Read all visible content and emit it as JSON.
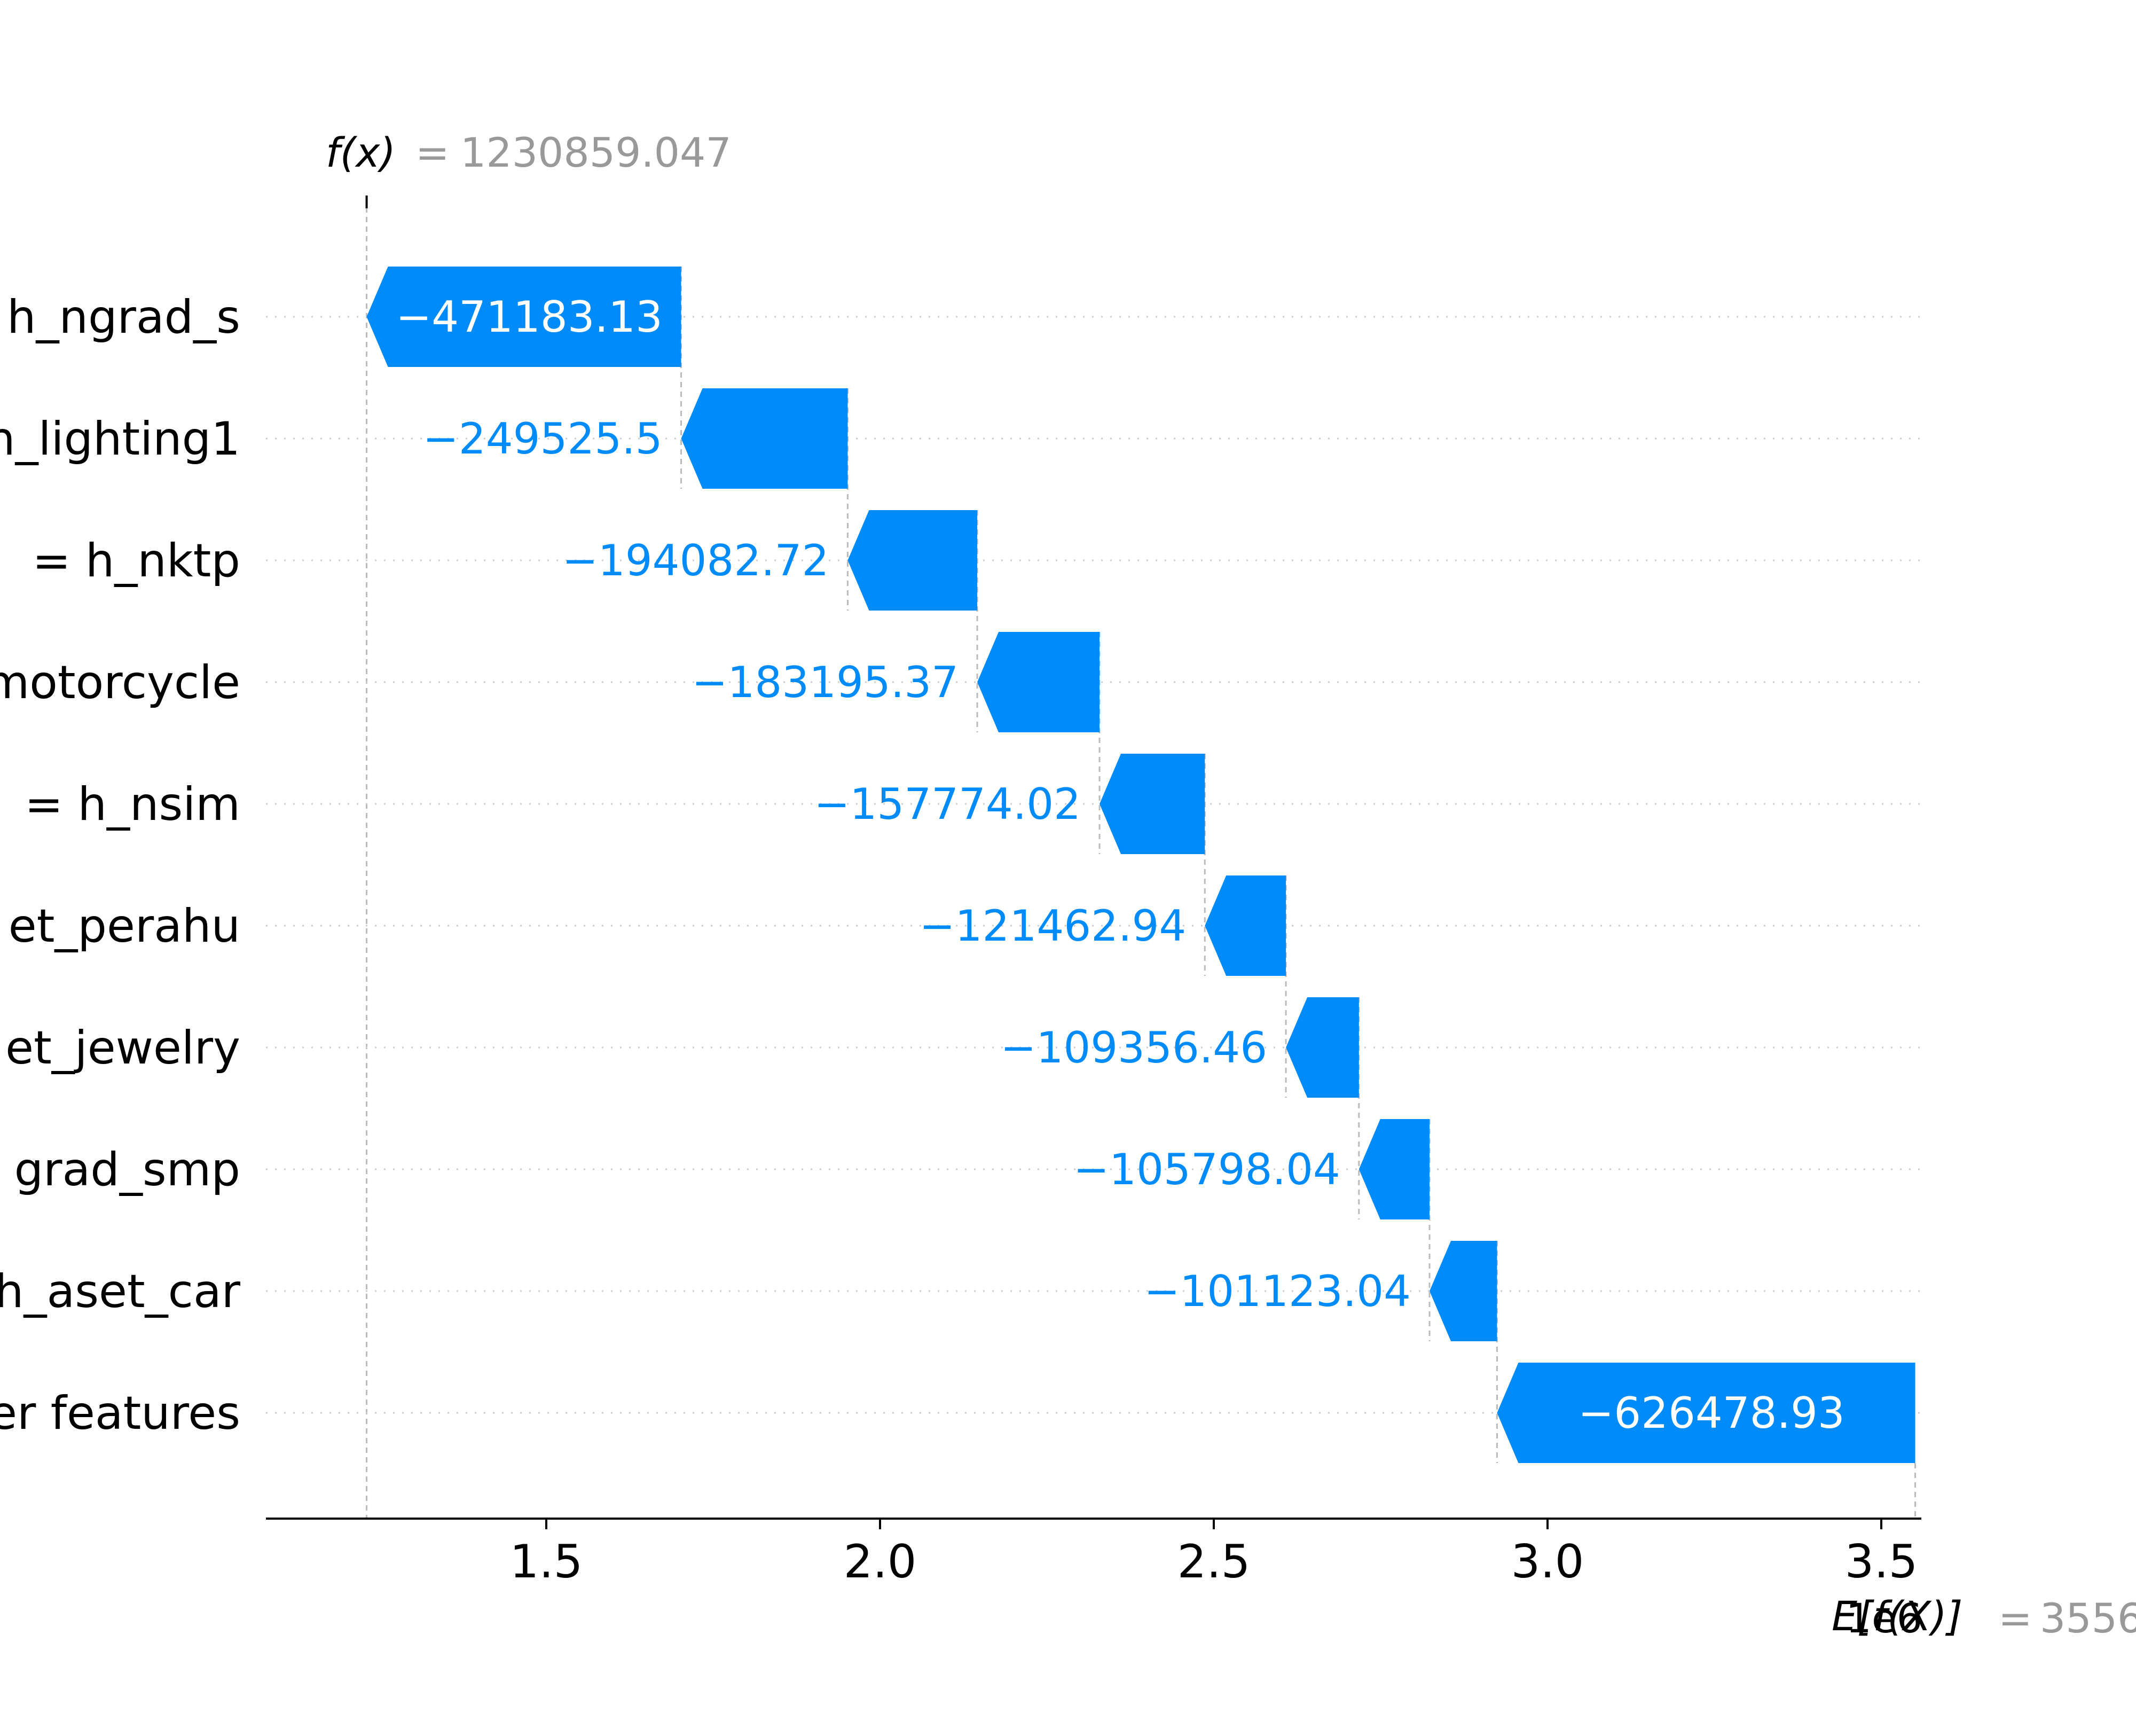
{
  "chart_data": {
    "type": "waterfall",
    "fx": {
      "name": "f(x)",
      "value": "1230859.047"
    },
    "efx": {
      "name": "E[f(X)]",
      "value": "3556..."
    },
    "scale_label": "1e6",
    "x_axis": {
      "ticks": [
        1.5,
        2.0,
        2.5,
        3.0,
        3.5
      ],
      "tick_labels": [
        "1.5",
        "2.0",
        "2.5",
        "3.0",
        "3.5"
      ],
      "range": [
        1.08,
        3.56
      ],
      "unit_multiplier": 1000000
    },
    "features": [
      {
        "label": "h_ngrad_s",
        "value": -471183.13,
        "value_label": "−471183.13",
        "start": 1.702042,
        "end": 1.230859
      },
      {
        "label": "h_lighting1",
        "value": -249525.5,
        "value_label": "−249525.5",
        "start": 1.951568,
        "end": 1.702042
      },
      {
        "label": "= h_nktp",
        "value": -194082.72,
        "value_label": "−194082.72",
        "start": 2.14565,
        "end": 1.951568
      },
      {
        "label": "motorcycle",
        "value": -183195.37,
        "value_label": "−183195.37",
        "start": 2.328846,
        "end": 2.14565
      },
      {
        "label": "= h_nsim",
        "value": -157774.02,
        "value_label": "−157774.02",
        "start": 2.48662,
        "end": 2.328846
      },
      {
        "label": "et_perahu",
        "value": -121462.94,
        "value_label": "−121462.94",
        "start": 2.608083,
        "end": 2.48662
      },
      {
        "label": "et_jewelry",
        "value": -109356.46,
        "value_label": "−109356.46",
        "start": 2.717439,
        "end": 2.608083
      },
      {
        "label": "grad_smp",
        "value": -105798.04,
        "value_label": "−105798.04",
        "start": 2.823237,
        "end": 2.717439
      },
      {
        "label": "h_aset_car",
        "value": -101123.04,
        "value_label": "−101123.04",
        "start": 2.92436,
        "end": 2.823237
      },
      {
        "label": "er features",
        "value": -626478.93,
        "value_label": "−626478.93",
        "start": 3.550839,
        "end": 2.92436
      }
    ],
    "colors": {
      "negative": "#008bfb",
      "label_outside": "#008bfb",
      "label_inside": "#ffffff",
      "text": "#000000",
      "muted_text": "#999999",
      "grid": "#cccccc"
    }
  }
}
